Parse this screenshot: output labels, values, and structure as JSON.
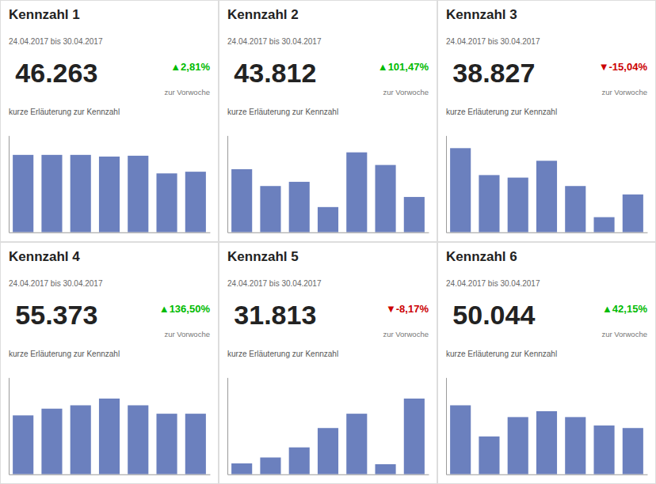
{
  "chart_data": [
    {
      "type": "bar",
      "title": "Kennzahl 1",
      "subtitle": "24.04.2017  bis  30.04.2017",
      "annotations": [
        {
          "text": "46.263"
        },
        {
          "text": "▲2,81%",
          "color": "#00bb00"
        },
        {
          "text": "zur Vorwoche"
        },
        {
          "text": "kurze Erläuterung zur Kennzahl"
        }
      ],
      "categories": [
        null,
        null,
        null,
        null,
        null,
        null,
        null
      ],
      "values": [
        0.92,
        0.92,
        0.92,
        0.9,
        0.91,
        0.7,
        0.72
      ],
      "color": "#6b80be",
      "ylim": [
        0,
        1.15
      ],
      "tick_labels": false
    },
    {
      "type": "bar",
      "title": "Kennzahl 2",
      "subtitle": "24.04.2017  bis  30.04.2017",
      "annotations": [
        {
          "text": "43.812"
        },
        {
          "text": "▲101,47%",
          "color": "#00bb00"
        },
        {
          "text": "zur Vorwoche"
        },
        {
          "text": "kurze Erläuterung zur Kennzahl"
        }
      ],
      "categories": [
        null,
        null,
        null,
        null,
        null,
        null,
        null
      ],
      "values": [
        0.75,
        0.55,
        0.6,
        0.3,
        0.95,
        0.8,
        0.42
      ],
      "color": "#6b80be",
      "ylim": [
        0,
        1.15
      ],
      "tick_labels": false
    },
    {
      "type": "bar",
      "title": "Kennzahl 3",
      "subtitle": "24.04.2017  bis  30.04.2017",
      "annotations": [
        {
          "text": "38.827"
        },
        {
          "text": "▼-15,04%",
          "color": "#cc0000"
        },
        {
          "text": "zur Vorwoche"
        },
        {
          "text": "kurze Erläuterung zur Kennzahl"
        }
      ],
      "categories": [
        null,
        null,
        null,
        null,
        null,
        null,
        null
      ],
      "values": [
        1.0,
        0.68,
        0.65,
        0.85,
        0.55,
        0.18,
        0.45
      ],
      "color": "#6b80be",
      "ylim": [
        0,
        1.15
      ],
      "tick_labels": false
    },
    {
      "type": "bar",
      "title": "Kennzahl 4",
      "subtitle": "24.04.2017  bis  30.04.2017",
      "annotations": [
        {
          "text": "55.373"
        },
        {
          "text": "▲136,50%",
          "color": "#00bb00"
        },
        {
          "text": "zur Vorwoche"
        },
        {
          "text": "kurze Erläuterung zur Kennzahl"
        }
      ],
      "categories": [
        null,
        null,
        null,
        null,
        null,
        null,
        null
      ],
      "values": [
        0.7,
        0.78,
        0.82,
        0.9,
        0.82,
        0.72,
        0.72
      ],
      "color": "#6b80be",
      "ylim": [
        0,
        1.15
      ],
      "tick_labels": false
    },
    {
      "type": "bar",
      "title": "Kennzahl 5",
      "subtitle": "24.04.2017  bis  30.04.2017",
      "annotations": [
        {
          "text": "31.813"
        },
        {
          "text": "▼-8,17%",
          "color": "#cc0000"
        },
        {
          "text": "zur Vorwoche"
        },
        {
          "text": "kurze Erläuterung zur Kennzahl"
        }
      ],
      "categories": [
        null,
        null,
        null,
        null,
        null,
        null,
        null
      ],
      "values": [
        0.13,
        0.2,
        0.32,
        0.55,
        0.72,
        0.12,
        0.9
      ],
      "color": "#6b80be",
      "ylim": [
        0,
        1.15
      ],
      "tick_labels": false
    },
    {
      "type": "bar",
      "title": "Kennzahl 6",
      "subtitle": "24.04.2017  bis  30.04.2017",
      "annotations": [
        {
          "text": "50.044"
        },
        {
          "text": "▲42,15%",
          "color": "#00bb00"
        },
        {
          "text": "zur Vorwoche"
        },
        {
          "text": "kurze Erläuterung zur Kennzahl"
        }
      ],
      "categories": [
        null,
        null,
        null,
        null,
        null,
        null,
        null
      ],
      "values": [
        0.82,
        0.45,
        0.68,
        0.75,
        0.68,
        0.58,
        0.55
      ],
      "color": "#6b80be",
      "ylim": [
        0,
        1.15
      ],
      "tick_labels": false
    }
  ]
}
